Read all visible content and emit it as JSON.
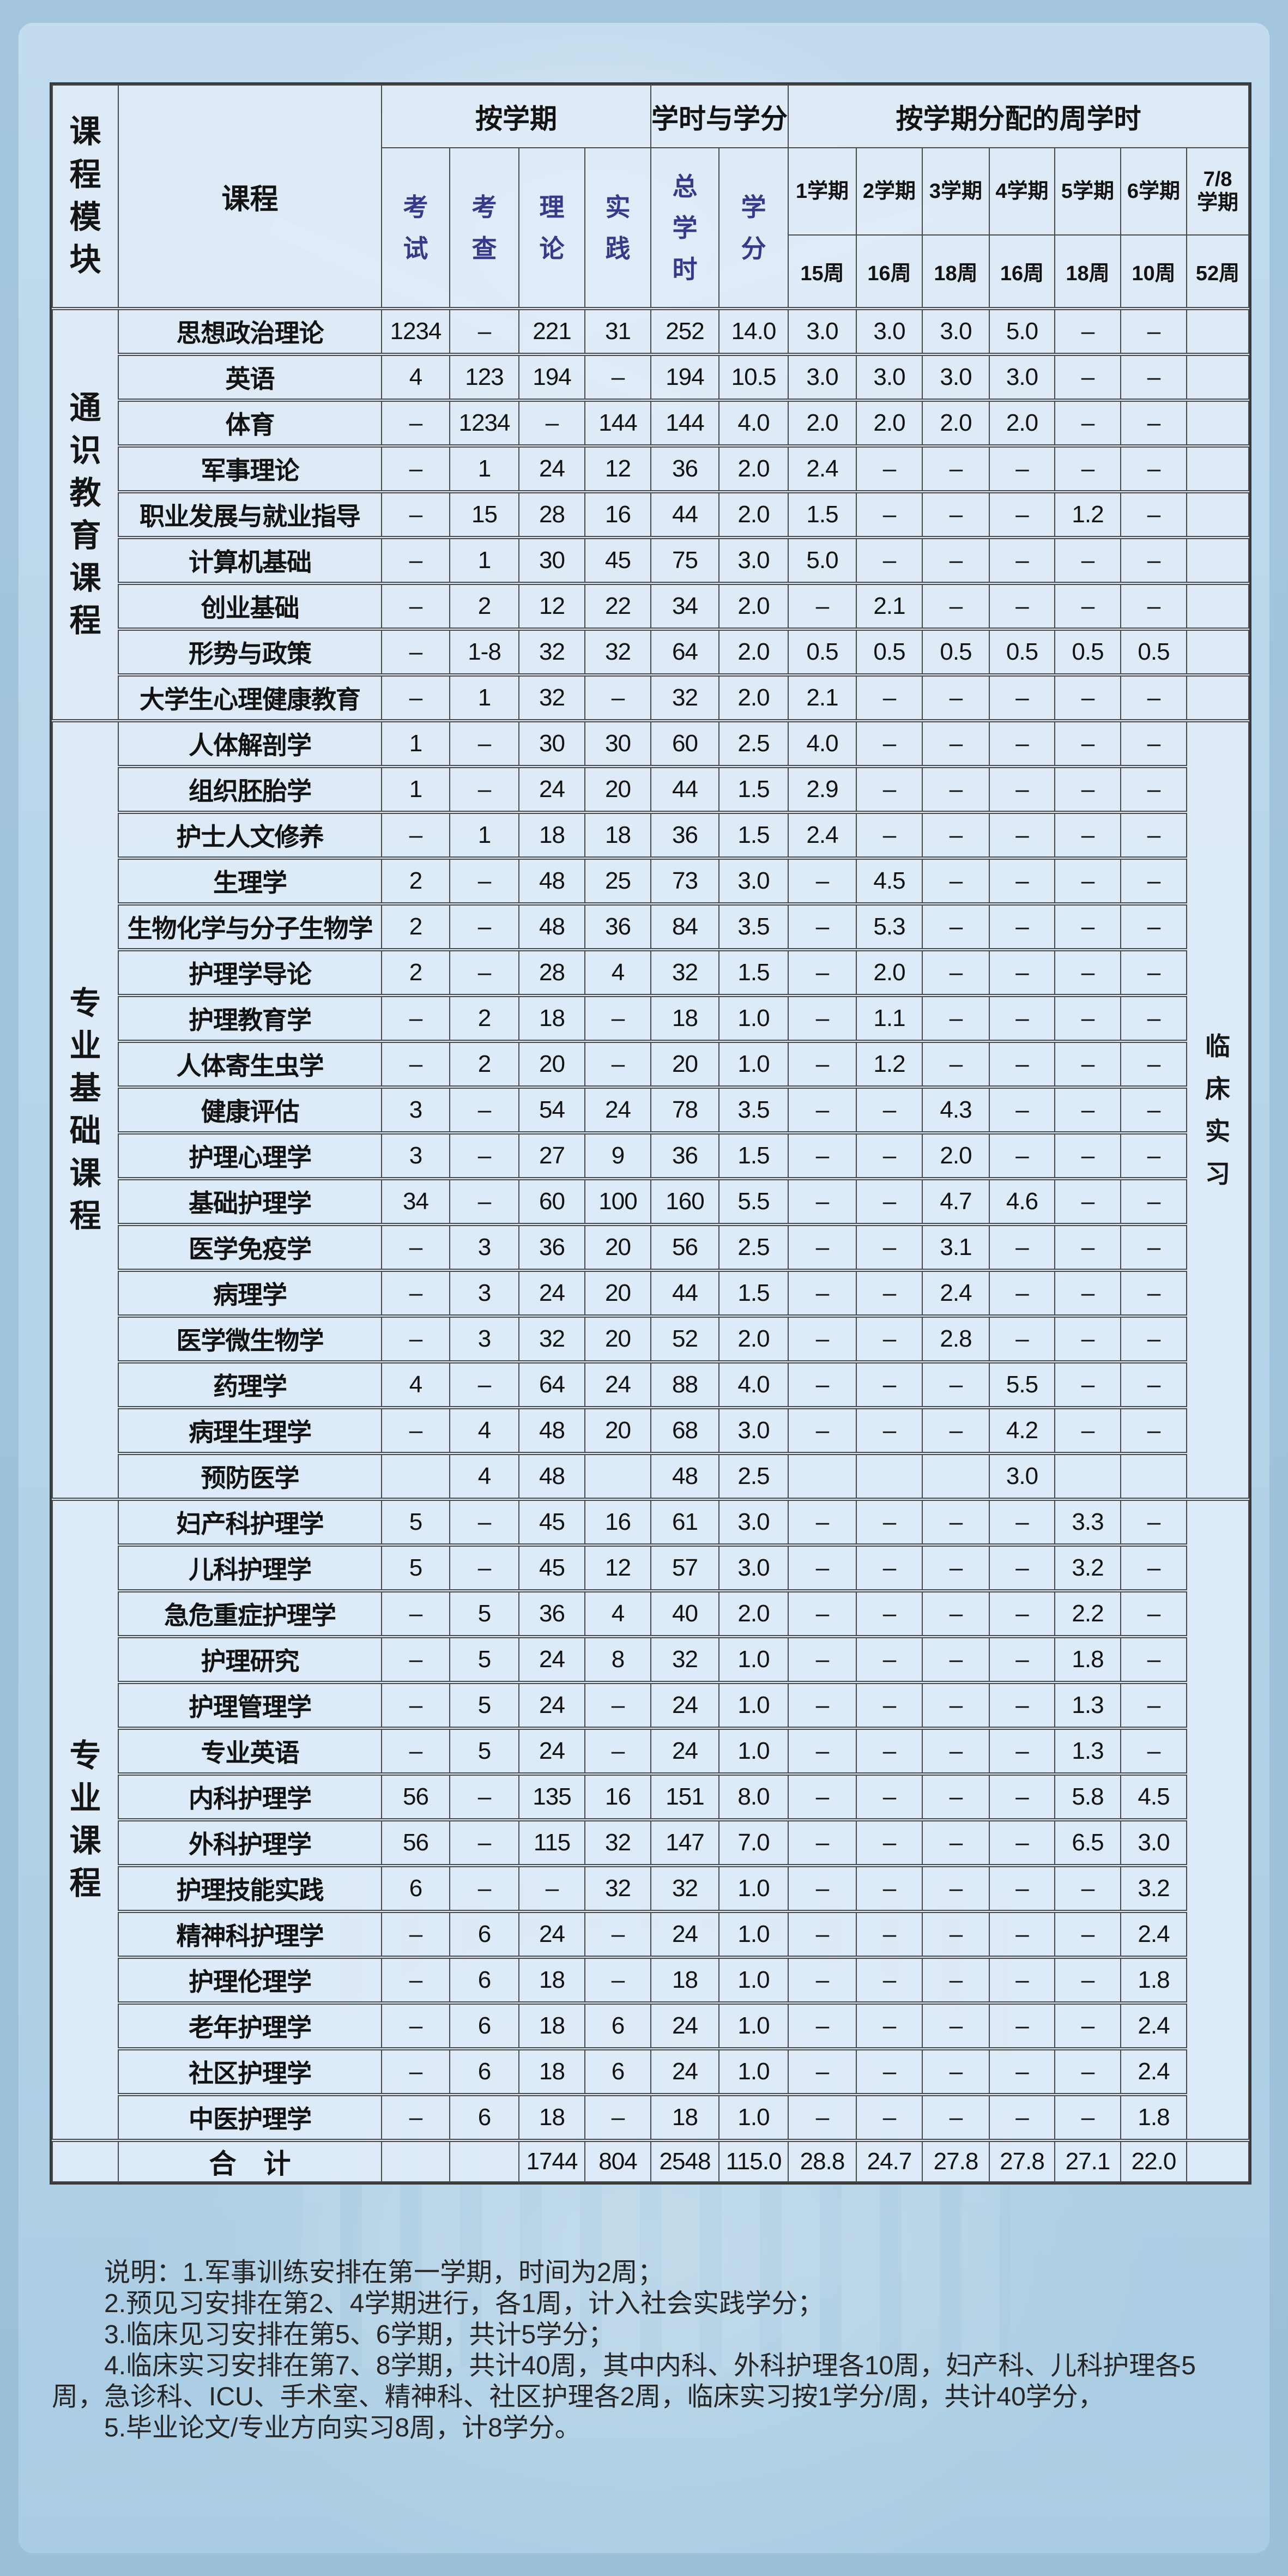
{
  "table": {
    "header": {
      "module": "课程模块",
      "course": "课程",
      "group_semester": "按学期",
      "group_hours_credits": "学时与学分",
      "group_weekly": "按学期分配的周学时",
      "sub": [
        "考试",
        "考查",
        "理论",
        "实践",
        "总学时",
        "学分"
      ],
      "semesters": [
        {
          "label": "1学期",
          "weeks": "15周"
        },
        {
          "label": "2学期",
          "weeks": "16周"
        },
        {
          "label": "3学期",
          "weeks": "18周"
        },
        {
          "label": "4学期",
          "weeks": "16周"
        },
        {
          "label": "5学期",
          "weeks": "18周"
        },
        {
          "label": "6学期",
          "weeks": "10周"
        },
        {
          "label": "7/8学期",
          "weeks": "52周"
        }
      ]
    },
    "sections": [
      {
        "module": "通识教育课程",
        "rows": [
          {
            "name": "思想政治理论",
            "cells": [
              "1234",
              "–",
              "221",
              "31",
              "252",
              "14.0",
              "3.0",
              "3.0",
              "3.0",
              "5.0",
              "–",
              "–",
              ""
            ]
          },
          {
            "name": "英语",
            "cells": [
              "4",
              "123",
              "194",
              "–",
              "194",
              "10.5",
              "3.0",
              "3.0",
              "3.0",
              "3.0",
              "–",
              "–",
              ""
            ]
          },
          {
            "name": "体育",
            "cells": [
              "–",
              "1234",
              "–",
              "144",
              "144",
              "4.0",
              "2.0",
              "2.0",
              "2.0",
              "2.0",
              "–",
              "–",
              ""
            ]
          },
          {
            "name": "军事理论",
            "cells": [
              "–",
              "1",
              "24",
              "12",
              "36",
              "2.0",
              "2.4",
              "–",
              "–",
              "–",
              "–",
              "–",
              ""
            ]
          },
          {
            "name": "职业发展与就业指导",
            "cells": [
              "–",
              "15",
              "28",
              "16",
              "44",
              "2.0",
              "1.5",
              "–",
              "–",
              "–",
              "1.2",
              "–",
              ""
            ]
          },
          {
            "name": "计算机基础",
            "cells": [
              "–",
              "1",
              "30",
              "45",
              "75",
              "3.0",
              "5.0",
              "–",
              "–",
              "–",
              "–",
              "–",
              ""
            ]
          },
          {
            "name": "创业基础",
            "cells": [
              "–",
              "2",
              "12",
              "22",
              "34",
              "2.0",
              "–",
              "2.1",
              "–",
              "–",
              "–",
              "–",
              ""
            ]
          },
          {
            "name": "形势与政策",
            "cells": [
              "–",
              "1-8",
              "32",
              "32",
              "64",
              "2.0",
              "0.5",
              "0.5",
              "0.5",
              "0.5",
              "0.5",
              "0.5",
              ""
            ]
          },
          {
            "name": "大学生心理健康教育",
            "cells": [
              "–",
              "1",
              "32",
              "–",
              "32",
              "2.0",
              "2.1",
              "–",
              "–",
              "–",
              "–",
              "–",
              ""
            ]
          }
        ]
      },
      {
        "module": "专业基础课程",
        "clinical": "临床实习",
        "rows": [
          {
            "name": "人体解剖学",
            "cells": [
              "1",
              "–",
              "30",
              "30",
              "60",
              "2.5",
              "4.0",
              "–",
              "–",
              "–",
              "–",
              "–"
            ]
          },
          {
            "name": "组织胚胎学",
            "cells": [
              "1",
              "–",
              "24",
              "20",
              "44",
              "1.5",
              "2.9",
              "–",
              "–",
              "–",
              "–",
              "–"
            ]
          },
          {
            "name": "护士人文修养",
            "cells": [
              "–",
              "1",
              "18",
              "18",
              "36",
              "1.5",
              "2.4",
              "–",
              "–",
              "–",
              "–",
              "–"
            ]
          },
          {
            "name": "生理学",
            "cells": [
              "2",
              "–",
              "48",
              "25",
              "73",
              "3.0",
              "–",
              "4.5",
              "–",
              "–",
              "–",
              "–"
            ]
          },
          {
            "name": "生物化学与分子生物学",
            "cells": [
              "2",
              "–",
              "48",
              "36",
              "84",
              "3.5",
              "–",
              "5.3",
              "–",
              "–",
              "–",
              "–"
            ]
          },
          {
            "name": "护理学导论",
            "cells": [
              "2",
              "–",
              "28",
              "4",
              "32",
              "1.5",
              "–",
              "2.0",
              "–",
              "–",
              "–",
              "–"
            ]
          },
          {
            "name": "护理教育学",
            "cells": [
              "–",
              "2",
              "18",
              "–",
              "18",
              "1.0",
              "–",
              "1.1",
              "–",
              "–",
              "–",
              "–"
            ]
          },
          {
            "name": "人体寄生虫学",
            "cells": [
              "–",
              "2",
              "20",
              "–",
              "20",
              "1.0",
              "–",
              "1.2",
              "–",
              "–",
              "–",
              "–"
            ]
          },
          {
            "name": "健康评估",
            "cells": [
              "3",
              "–",
              "54",
              "24",
              "78",
              "3.5",
              "–",
              "–",
              "4.3",
              "–",
              "–",
              "–"
            ]
          },
          {
            "name": "护理心理学",
            "cells": [
              "3",
              "–",
              "27",
              "9",
              "36",
              "1.5",
              "–",
              "–",
              "2.0",
              "–",
              "–",
              "–"
            ]
          },
          {
            "name": "基础护理学",
            "cells": [
              "34",
              "–",
              "60",
              "100",
              "160",
              "5.5",
              "–",
              "–",
              "4.7",
              "4.6",
              "–",
              "–"
            ]
          },
          {
            "name": "医学免疫学",
            "cells": [
              "–",
              "3",
              "36",
              "20",
              "56",
              "2.5",
              "–",
              "–",
              "3.1",
              "–",
              "–",
              "–"
            ]
          },
          {
            "name": "病理学",
            "cells": [
              "–",
              "3",
              "24",
              "20",
              "44",
              "1.5",
              "–",
              "–",
              "2.4",
              "–",
              "–",
              "–"
            ]
          },
          {
            "name": "医学微生物学",
            "cells": [
              "–",
              "3",
              "32",
              "20",
              "52",
              "2.0",
              "–",
              "–",
              "2.8",
              "–",
              "–",
              "–"
            ]
          },
          {
            "name": "药理学",
            "cells": [
              "4",
              "–",
              "64",
              "24",
              "88",
              "4.0",
              "–",
              "–",
              "–",
              "5.5",
              "–",
              "–"
            ]
          },
          {
            "name": "病理生理学",
            "cells": [
              "–",
              "4",
              "48",
              "20",
              "68",
              "3.0",
              "–",
              "–",
              "–",
              "4.2",
              "–",
              "–"
            ]
          },
          {
            "name": "预防医学",
            "cells": [
              "",
              "4",
              "48",
              "",
              "48",
              "2.5",
              "",
              "",
              "",
              "3.0",
              "",
              ""
            ]
          }
        ]
      },
      {
        "module": "专业课程",
        "clinical": "",
        "rows": [
          {
            "name": "妇产科护理学",
            "cells": [
              "5",
              "–",
              "45",
              "16",
              "61",
              "3.0",
              "–",
              "–",
              "–",
              "–",
              "3.3",
              "–"
            ]
          },
          {
            "name": "儿科护理学",
            "cells": [
              "5",
              "–",
              "45",
              "12",
              "57",
              "3.0",
              "–",
              "–",
              "–",
              "–",
              "3.2",
              "–"
            ]
          },
          {
            "name": "急危重症护理学",
            "cells": [
              "–",
              "5",
              "36",
              "4",
              "40",
              "2.0",
              "–",
              "–",
              "–",
              "–",
              "2.2",
              "–"
            ]
          },
          {
            "name": "护理研究",
            "cells": [
              "–",
              "5",
              "24",
              "8",
              "32",
              "1.0",
              "–",
              "–",
              "–",
              "–",
              "1.8",
              "–"
            ]
          },
          {
            "name": "护理管理学",
            "cells": [
              "–",
              "5",
              "24",
              "–",
              "24",
              "1.0",
              "–",
              "–",
              "–",
              "–",
              "1.3",
              "–"
            ]
          },
          {
            "name": "专业英语",
            "cells": [
              "–",
              "5",
              "24",
              "–",
              "24",
              "1.0",
              "–",
              "–",
              "–",
              "–",
              "1.3",
              "–"
            ]
          },
          {
            "name": "内科护理学",
            "cells": [
              "56",
              "–",
              "135",
              "16",
              "151",
              "8.0",
              "–",
              "–",
              "–",
              "–",
              "5.8",
              "4.5"
            ]
          },
          {
            "name": "外科护理学",
            "cells": [
              "56",
              "–",
              "115",
              "32",
              "147",
              "7.0",
              "–",
              "–",
              "–",
              "–",
              "6.5",
              "3.0"
            ]
          },
          {
            "name": "护理技能实践",
            "cells": [
              "6",
              "–",
              "–",
              "32",
              "32",
              "1.0",
              "–",
              "–",
              "–",
              "–",
              "–",
              "3.2"
            ]
          },
          {
            "name": "精神科护理学",
            "cells": [
              "–",
              "6",
              "24",
              "–",
              "24",
              "1.0",
              "–",
              "–",
              "–",
              "–",
              "–",
              "2.4"
            ]
          },
          {
            "name": "护理伦理学",
            "cells": [
              "–",
              "6",
              "18",
              "–",
              "18",
              "1.0",
              "–",
              "–",
              "–",
              "–",
              "–",
              "1.8"
            ]
          },
          {
            "name": "老年护理学",
            "cells": [
              "–",
              "6",
              "18",
              "6",
              "24",
              "1.0",
              "–",
              "–",
              "–",
              "–",
              "–",
              "2.4"
            ]
          },
          {
            "name": "社区护理学",
            "cells": [
              "–",
              "6",
              "18",
              "6",
              "24",
              "1.0",
              "–",
              "–",
              "–",
              "–",
              "–",
              "2.4"
            ]
          },
          {
            "name": "中医护理学",
            "cells": [
              "–",
              "6",
              "18",
              "–",
              "18",
              "1.0",
              "–",
              "–",
              "–",
              "–",
              "–",
              "1.8"
            ]
          }
        ]
      }
    ],
    "total_row": {
      "label": "合　计",
      "cells": [
        "",
        "",
        "1744",
        "804",
        "2548",
        "115.0",
        "28.8",
        "24.7",
        "27.8",
        "27.8",
        "27.1",
        "22.0",
        ""
      ]
    }
  },
  "notes": [
    "说明：1.军事训练安排在第一学期，时间为2周；",
    "2.预见习安排在第2、4学期进行，各1周，计入社会实践学分；",
    "3.临床见习安排在第5、6学期，共计5学分；",
    "4.临床实习安排在第7、8学期，共计40周，其中内科、外科护理各10周，妇产科、儿科护理各5周，急诊科、ICU、手术室、精神科、社区护理各2周，临床实习按1学分/周，共计40学分，",
    "5.毕业论文/专业方向实习8周，计8学分。"
  ],
  "colors": {
    "header_ink": "#39398c",
    "body_ink": "#121212",
    "cell_bg": "#e0ecf8",
    "grid_line": "#4a4a4a",
    "page_bg": "#a3c6de"
  }
}
